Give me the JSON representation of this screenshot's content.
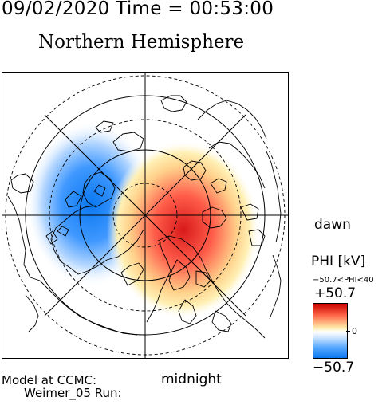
{
  "header": {
    "datetime": "09/02/2020 Time = 00:53:00"
  },
  "title": "Northern Hemisphere",
  "labels": {
    "dawn": "dawn",
    "midnight": "midnight"
  },
  "colorbar": {
    "title": "PHI [kV]",
    "range_label": "−50.7<PHI<40",
    "max": "+50.7",
    "min": "−50.7",
    "zero": "0",
    "colors": {
      "positive": "#e02020",
      "mid": "#ffffff",
      "negative": "#1478f0"
    }
  },
  "footer": {
    "line1": "Model at CCMC:",
    "line2": "Weimer_05 Run:"
  }
}
